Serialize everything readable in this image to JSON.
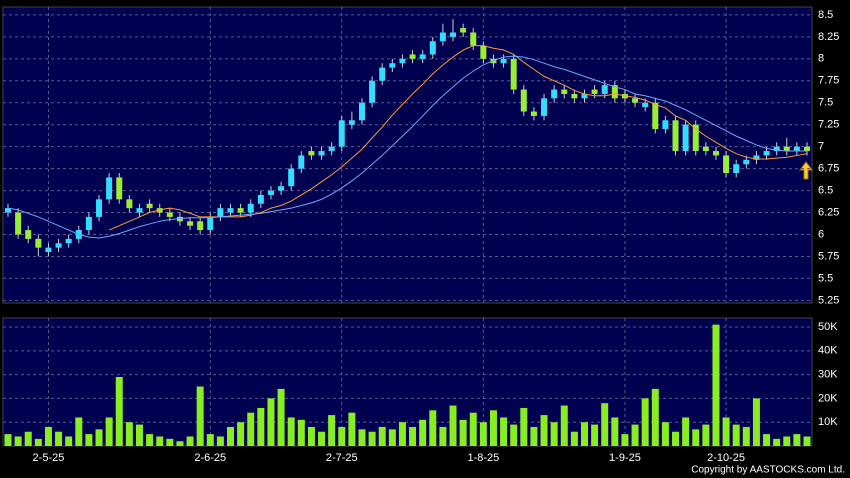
{
  "chart_data": [
    {
      "type": "candlestick",
      "categories": [
        null,
        null,
        null,
        null,
        "2-5-25",
        null,
        null,
        null,
        null,
        null,
        null,
        null,
        null,
        null,
        null,
        null,
        null,
        null,
        null,
        null,
        "2-6-25",
        null,
        null,
        null,
        null,
        null,
        null,
        null,
        null,
        null,
        null,
        null,
        null,
        "2-7-25",
        null,
        null,
        null,
        null,
        null,
        null,
        null,
        null,
        null,
        null,
        null,
        null,
        null,
        "1-8-25",
        null,
        null,
        null,
        null,
        null,
        null,
        null,
        null,
        null,
        null,
        null,
        null,
        null,
        "1-9-25",
        null,
        null,
        null,
        null,
        null,
        null,
        null,
        null,
        null,
        "2-10-25",
        null,
        null,
        null,
        null,
        null,
        null,
        null,
        null
      ],
      "open": [
        6.25,
        6.25,
        6.05,
        5.95,
        5.8,
        5.85,
        5.9,
        5.95,
        6.05,
        6.2,
        6.4,
        6.65,
        6.4,
        6.25,
        6.35,
        6.3,
        6.25,
        6.2,
        6.15,
        6.15,
        6.05,
        6.2,
        6.25,
        6.3,
        6.25,
        6.35,
        6.45,
        6.5,
        6.55,
        6.75,
        6.95,
        6.9,
        6.95,
        7.0,
        7.25,
        7.3,
        7.5,
        7.75,
        7.9,
        7.95,
        8.05,
        8.0,
        8.05,
        8.2,
        8.25,
        8.35,
        8.3,
        8.15,
        8.0,
        7.95,
        8.0,
        7.65,
        7.4,
        7.35,
        7.55,
        7.65,
        7.6,
        7.55,
        7.65,
        7.6,
        7.7,
        7.6,
        7.55,
        7.45,
        7.5,
        7.2,
        7.3,
        6.95,
        7.25,
        7.0,
        6.95,
        6.9,
        6.7,
        6.8,
        6.85,
        6.9,
        6.95,
        7.0,
        6.95,
        7.0
      ],
      "high": [
        6.35,
        6.3,
        6.1,
        6.0,
        5.9,
        5.95,
        6.0,
        6.1,
        6.25,
        6.45,
        6.7,
        6.7,
        6.45,
        6.35,
        6.4,
        6.35,
        6.3,
        6.25,
        6.2,
        6.2,
        6.25,
        6.35,
        6.35,
        6.35,
        6.4,
        6.5,
        6.55,
        6.6,
        6.8,
        6.95,
        7.0,
        7.0,
        7.05,
        7.35,
        7.4,
        7.55,
        7.8,
        7.95,
        8.0,
        8.05,
        8.1,
        8.1,
        8.25,
        8.4,
        8.45,
        8.4,
        8.35,
        8.2,
        8.05,
        8.05,
        8.05,
        7.7,
        7.45,
        7.6,
        7.7,
        7.7,
        7.65,
        7.65,
        7.7,
        7.75,
        7.75,
        7.65,
        7.6,
        7.55,
        7.55,
        7.35,
        7.35,
        7.3,
        7.3,
        7.05,
        7.0,
        6.95,
        6.85,
        6.9,
        6.95,
        7.0,
        7.05,
        7.1,
        7.05,
        7.05
      ],
      "low": [
        6.2,
        5.95,
        5.9,
        5.75,
        5.75,
        5.8,
        5.85,
        5.9,
        6.0,
        6.15,
        6.35,
        6.35,
        6.25,
        6.2,
        6.25,
        6.2,
        6.15,
        6.1,
        6.05,
        6.0,
        6.0,
        6.15,
        6.2,
        6.2,
        6.2,
        6.3,
        6.4,
        6.45,
        6.5,
        6.7,
        6.85,
        6.85,
        6.9,
        6.95,
        7.2,
        7.25,
        7.45,
        7.7,
        7.85,
        7.9,
        7.95,
        7.95,
        8.0,
        8.15,
        8.2,
        8.25,
        8.1,
        7.95,
        7.9,
        7.9,
        7.6,
        7.35,
        7.3,
        7.3,
        7.5,
        7.55,
        7.5,
        7.5,
        7.55,
        7.55,
        7.5,
        7.5,
        7.45,
        7.4,
        7.15,
        7.15,
        6.9,
        6.9,
        6.9,
        6.9,
        6.85,
        6.65,
        6.65,
        6.75,
        6.8,
        6.85,
        6.9,
        6.9,
        6.9,
        6.9
      ],
      "close": [
        6.3,
        6.0,
        5.95,
        5.85,
        5.85,
        5.9,
        5.95,
        6.05,
        6.2,
        6.4,
        6.65,
        6.4,
        6.3,
        6.3,
        6.3,
        6.25,
        6.2,
        6.15,
        6.1,
        6.05,
        6.2,
        6.3,
        6.3,
        6.25,
        6.35,
        6.45,
        6.5,
        6.55,
        6.75,
        6.9,
        6.9,
        6.95,
        7.0,
        7.3,
        7.3,
        7.5,
        7.75,
        7.9,
        7.95,
        8.0,
        8.0,
        8.05,
        8.2,
        8.3,
        8.3,
        8.3,
        8.15,
        8.0,
        7.95,
        8.0,
        7.65,
        7.4,
        7.35,
        7.55,
        7.65,
        7.6,
        7.55,
        7.6,
        7.6,
        7.7,
        7.55,
        7.55,
        7.5,
        7.5,
        7.2,
        7.3,
        6.95,
        7.25,
        6.95,
        6.95,
        6.9,
        6.7,
        6.8,
        6.85,
        6.9,
        6.95,
        7.0,
        6.95,
        7.0,
        6.95
      ],
      "up_color": "#33ddff",
      "down_color": "#99ee33",
      "series": [
        {
          "color": "#ff9933",
          "values": [
            null,
            null,
            null,
            null,
            null,
            null,
            null,
            null,
            null,
            null,
            6.05,
            6.1,
            6.15,
            6.2,
            6.25,
            6.28,
            6.3,
            6.28,
            6.24,
            6.2,
            6.2,
            6.2,
            6.2,
            6.2,
            6.22,
            6.25,
            6.3,
            6.33,
            6.38,
            6.45,
            6.52,
            6.6,
            6.68,
            6.77,
            6.87,
            6.97,
            7.1,
            7.22,
            7.36,
            7.48,
            7.6,
            7.71,
            7.83,
            7.93,
            8.02,
            8.1,
            8.15,
            8.15,
            8.12,
            8.1,
            8.05,
            7.96,
            7.88,
            7.8,
            7.75,
            7.7,
            7.64,
            7.6,
            7.58,
            7.58,
            7.6,
            7.58,
            7.56,
            7.53,
            7.48,
            7.44,
            7.35,
            7.3,
            7.2,
            7.12,
            7.05,
            6.98,
            6.92,
            6.88,
            6.86,
            6.86,
            6.87,
            6.88,
            6.9,
            6.92
          ]
        },
        {
          "color": "#66aaff",
          "values": [
            6.3,
            6.28,
            6.24,
            6.2,
            6.15,
            6.1,
            6.05,
            6.0,
            5.97,
            5.96,
            5.98,
            6.01,
            6.05,
            6.09,
            6.12,
            6.15,
            6.17,
            6.18,
            6.19,
            6.19,
            6.19,
            6.2,
            6.21,
            6.22,
            6.23,
            6.24,
            6.26,
            6.28,
            6.3,
            6.33,
            6.36,
            6.4,
            6.46,
            6.53,
            6.61,
            6.7,
            6.8,
            6.9,
            7.01,
            7.12,
            7.23,
            7.35,
            7.47,
            7.58,
            7.68,
            7.78,
            7.86,
            7.93,
            7.98,
            8.02,
            8.03,
            8.02,
            7.99,
            7.95,
            7.91,
            7.88,
            7.84,
            7.8,
            7.76,
            7.72,
            7.68,
            7.65,
            7.6,
            7.58,
            7.55,
            7.52,
            7.47,
            7.42,
            7.36,
            7.3,
            7.24,
            7.18,
            7.12,
            7.07,
            7.02,
            6.98,
            6.96,
            6.95,
            6.95,
            6.95
          ]
        }
      ],
      "ylim": [
        5.22,
        8.59
      ],
      "yticks": [
        5.25,
        5.5,
        5.75,
        6,
        6.25,
        6.5,
        6.75,
        7,
        7.25,
        7.5,
        7.75,
        8,
        8.25,
        8.5
      ],
      "grid": true
    },
    {
      "type": "bar",
      "values": [
        5000,
        4000,
        6000,
        3000,
        8000,
        6000,
        4000,
        12000,
        5000,
        7000,
        12000,
        29000,
        10000,
        9000,
        5000,
        4000,
        3000,
        2000,
        4000,
        25000,
        5000,
        4000,
        8000,
        10000,
        14000,
        16000,
        20000,
        24000,
        12000,
        11000,
        8000,
        6000,
        13000,
        8000,
        14000,
        7000,
        6000,
        8000,
        7000,
        10000,
        8000,
        11000,
        15000,
        8000,
        17000,
        11000,
        14000,
        10000,
        15000,
        12000,
        9000,
        16000,
        8000,
        13000,
        10000,
        17000,
        6000,
        10000,
        9000,
        18000,
        12000,
        5000,
        9000,
        20000,
        24000,
        10000,
        6000,
        12000,
        7000,
        9000,
        51000,
        12000,
        9000,
        8000,
        20000,
        5000,
        3000,
        4000,
        5000,
        4000
      ],
      "color": "#88ee22",
      "ylim": [
        0,
        53800
      ],
      "yticks": [
        {
          "value": 10000,
          "label": "10K"
        },
        {
          "value": 20000,
          "label": "20K"
        },
        {
          "value": 30000,
          "label": "30K"
        },
        {
          "value": 40000,
          "label": "40K"
        },
        {
          "value": 50000,
          "label": "50K"
        }
      ],
      "grid": true
    }
  ],
  "copyright": "Copyright by AASTOCKS.com Ltd."
}
